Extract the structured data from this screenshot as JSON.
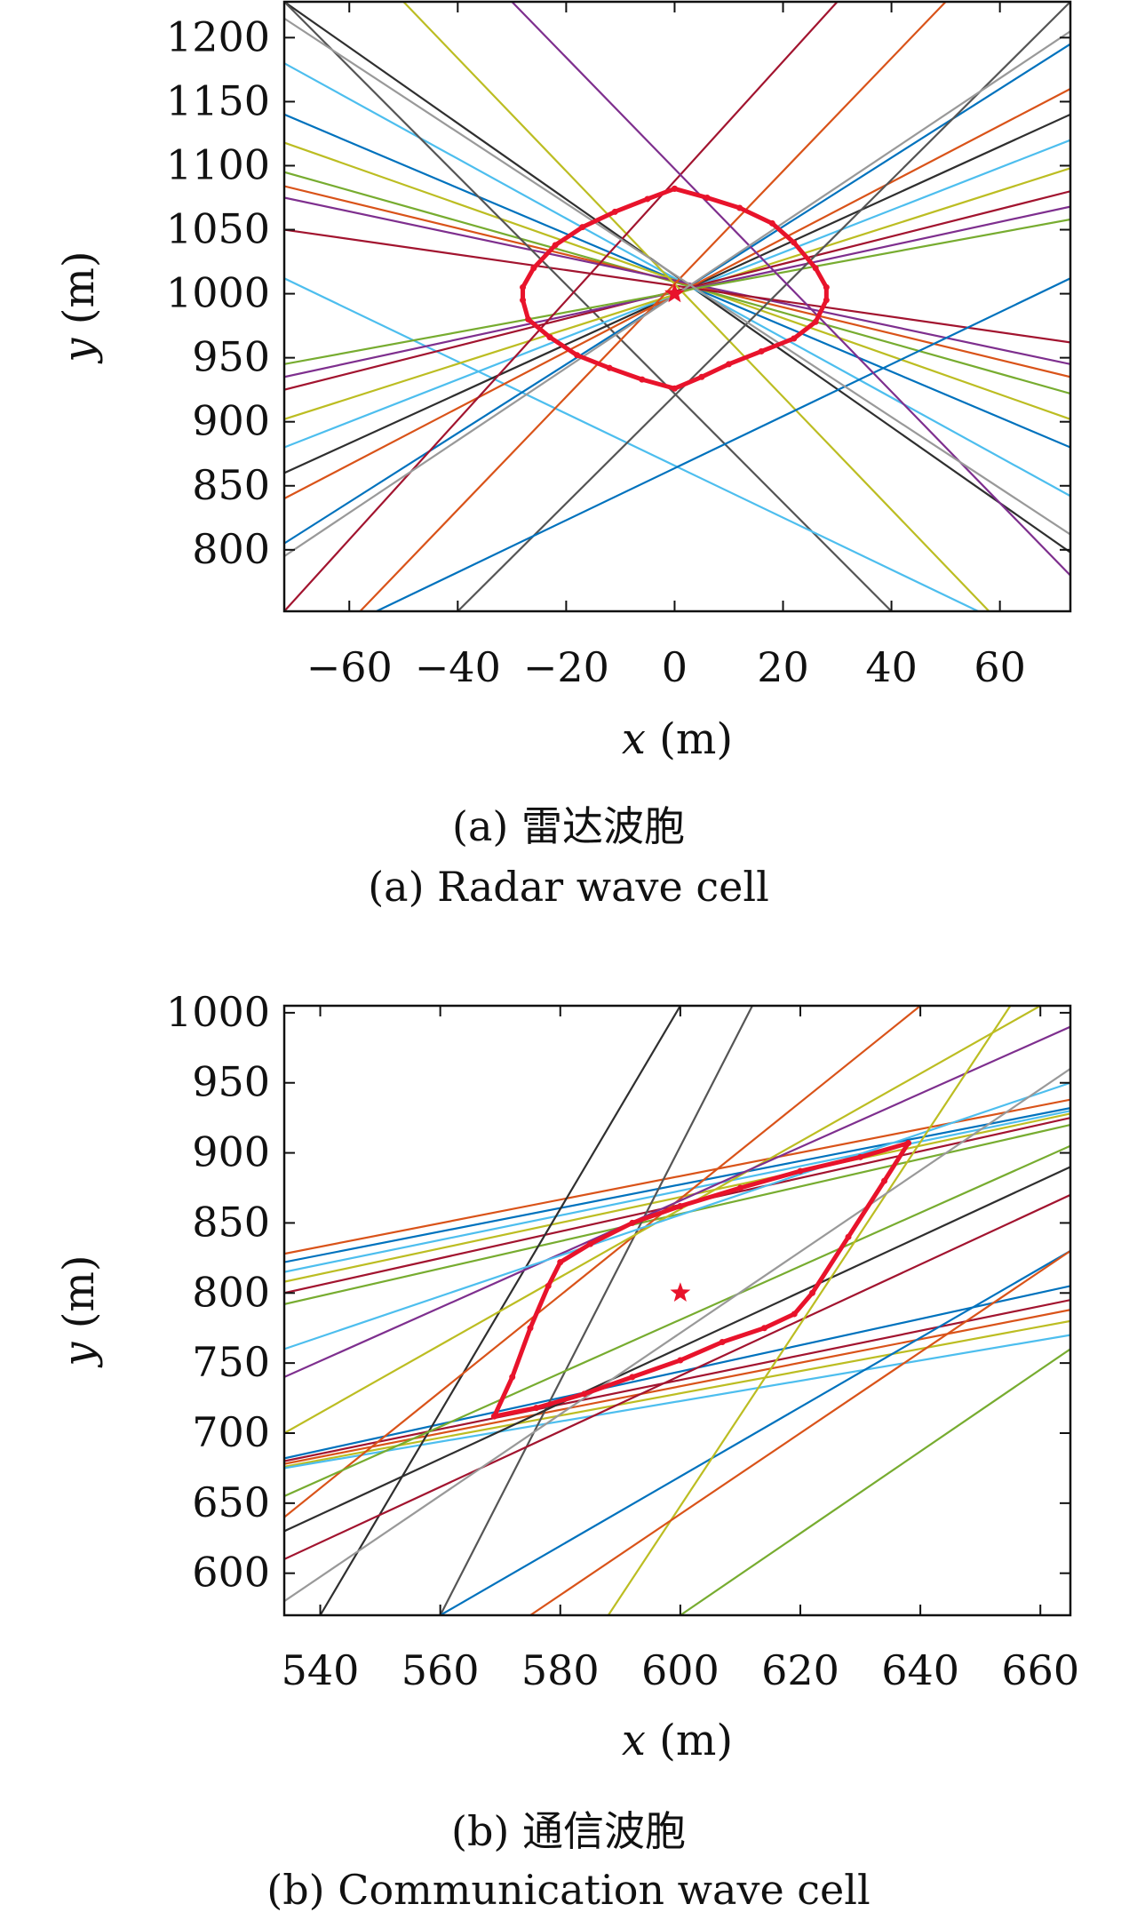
{
  "charts": [
    {
      "id": "a",
      "chart_data": {
        "type": "line",
        "xlabel_var": "x",
        "xlabel_unit": "(m)",
        "ylabel_var": "y",
        "ylabel_unit": "(m)",
        "xlim": [
          -72,
          73
        ],
        "ylim": [
          752,
          1228
        ],
        "xticks": [
          -60,
          -40,
          -20,
          0,
          20,
          40,
          60
        ],
        "xtick_labels": [
          "−60",
          "−40",
          "−20",
          "0",
          "20",
          "40",
          "60"
        ],
        "yticks": [
          800,
          850,
          900,
          950,
          1000,
          1050,
          1100,
          1150,
          1200
        ],
        "ytick_labels": [
          "800",
          "850",
          "900",
          "950",
          "1000",
          "1050",
          "1100",
          "1150",
          "1200"
        ],
        "lines": [
          {
            "p1": [
              -72,
              1228
            ],
            "p2": [
              73,
              798
            ],
            "color": "#2f2f2f"
          },
          {
            "p1": [
              -72,
              1180
            ],
            "p2": [
              73,
              842
            ],
            "color": "#4dbeee"
          },
          {
            "p1": [
              -72,
              1140
            ],
            "p2": [
              73,
              880
            ],
            "color": "#0072bd"
          },
          {
            "p1": [
              -72,
              1118
            ],
            "p2": [
              73,
              902
            ],
            "color": "#bcbd22"
          },
          {
            "p1": [
              -72,
              1095
            ],
            "p2": [
              73,
              922
            ],
            "color": "#77ac30"
          },
          {
            "p1": [
              -72,
              1084
            ],
            "p2": [
              73,
              935
            ],
            "color": "#d95319"
          },
          {
            "p1": [
              -72,
              1075
            ],
            "p2": [
              73,
              945
            ],
            "color": "#7e2f8e"
          },
          {
            "p1": [
              -72,
              1050
            ],
            "p2": [
              73,
              962
            ],
            "color": "#a2142f"
          },
          {
            "p1": [
              -72,
              1228
            ],
            "p2": [
              40,
              752
            ],
            "color": "#555555"
          },
          {
            "p1": [
              -50,
              1228
            ],
            "p2": [
              58,
              752
            ],
            "color": "#bcbd22"
          },
          {
            "p1": [
              -72,
              1012
            ],
            "p2": [
              56,
              752
            ],
            "color": "#4dbeee"
          },
          {
            "p1": [
              -72,
              860
            ],
            "p2": [
              73,
              1140
            ],
            "color": "#2f2f2f"
          },
          {
            "p1": [
              -72,
              805
            ],
            "p2": [
              73,
              1195
            ],
            "color": "#0072bd"
          },
          {
            "p1": [
              -72,
              840
            ],
            "p2": [
              73,
              1160
            ],
            "color": "#d95319"
          },
          {
            "p1": [
              -72,
              880
            ],
            "p2": [
              73,
              1120
            ],
            "color": "#4dbeee"
          },
          {
            "p1": [
              -72,
              902
            ],
            "p2": [
              73,
              1098
            ],
            "color": "#bcbd22"
          },
          {
            "p1": [
              -72,
              925
            ],
            "p2": [
              73,
              1080
            ],
            "color": "#a2142f"
          },
          {
            "p1": [
              -72,
              935
            ],
            "p2": [
              73,
              1068
            ],
            "color": "#7e2f8e"
          },
          {
            "p1": [
              -72,
              945
            ],
            "p2": [
              73,
              1058
            ],
            "color": "#77ac30"
          },
          {
            "p1": [
              -40,
              752
            ],
            "p2": [
              73,
              1228
            ],
            "color": "#555555"
          },
          {
            "p1": [
              -58,
              752
            ],
            "p2": [
              50,
              1228
            ],
            "color": "#d95319"
          },
          {
            "p1": [
              -55,
              752
            ],
            "p2": [
              73,
              1012
            ],
            "color": "#0072bd"
          },
          {
            "p1": [
              -72,
              752
            ],
            "p2": [
              30,
              1228
            ],
            "color": "#a2142f"
          },
          {
            "p1": [
              -30,
              1228
            ],
            "p2": [
              73,
              780
            ],
            "color": "#7e2f8e"
          },
          {
            "p1": [
              -72,
              1215
            ],
            "p2": [
              73,
              812
            ],
            "color": "#999999"
          },
          {
            "p1": [
              -72,
              795
            ],
            "p2": [
              73,
              1205
            ],
            "color": "#999999"
          },
          {
            "p1": [
              -72,
              1000
            ],
            "p2": [
              73,
              1000
            ],
            "color": "#ffffff00"
          }
        ],
        "cell_boundary": [
          [
            0,
            1082
          ],
          [
            6,
            1075
          ],
          [
            12,
            1067
          ],
          [
            18,
            1055
          ],
          [
            22,
            1040
          ],
          [
            26,
            1020
          ],
          [
            28,
            1005
          ],
          [
            28,
            995
          ],
          [
            26,
            978
          ],
          [
            22,
            965
          ],
          [
            16,
            955
          ],
          [
            10,
            945
          ],
          [
            5,
            935
          ],
          [
            0,
            926
          ],
          [
            -6,
            933
          ],
          [
            -12,
            942
          ],
          [
            -18,
            952
          ],
          [
            -23,
            966
          ],
          [
            -27,
            980
          ],
          [
            -28,
            995
          ],
          [
            -28,
            1005
          ],
          [
            -26,
            1020
          ],
          [
            -22,
            1038
          ],
          [
            -17,
            1052
          ],
          [
            -11,
            1064
          ],
          [
            -5,
            1074
          ],
          [
            0,
            1082
          ]
        ],
        "center": [
          0,
          1000
        ]
      },
      "caption_cn": "(a) 雷达波胞",
      "caption_en": "(a) Radar wave cell"
    },
    {
      "id": "b",
      "chart_data": {
        "type": "line",
        "xlabel_var": "x",
        "xlabel_unit": "(m)",
        "ylabel_var": "y",
        "ylabel_unit": "(m)",
        "xlim": [
          534,
          665
        ],
        "ylim": [
          570,
          1005
        ],
        "xticks": [
          540,
          560,
          580,
          600,
          620,
          640,
          660
        ],
        "xtick_labels": [
          "540",
          "560",
          "580",
          "600",
          "620",
          "640",
          "660"
        ],
        "yticks": [
          600,
          650,
          700,
          750,
          800,
          850,
          900,
          950,
          1000
        ],
        "ytick_labels": [
          "600",
          "650",
          "700",
          "750",
          "800",
          "850",
          "900",
          "950",
          "1000"
        ],
        "lines": [
          {
            "p1": [
              534,
              828
            ],
            "p2": [
              665,
              938
            ],
            "color": "#d95319"
          },
          {
            "p1": [
              534,
              822
            ],
            "p2": [
              665,
              932
            ],
            "color": "#0072bd"
          },
          {
            "p1": [
              534,
              815
            ],
            "p2": [
              665,
              930
            ],
            "color": "#4dbeee"
          },
          {
            "p1": [
              534,
              808
            ],
            "p2": [
              665,
              928
            ],
            "color": "#bcbd22"
          },
          {
            "p1": [
              534,
              800
            ],
            "p2": [
              665,
              925
            ],
            "color": "#a2142f"
          },
          {
            "p1": [
              534,
              792
            ],
            "p2": [
              665,
              920
            ],
            "color": "#77ac30"
          },
          {
            "p1": [
              534,
              682
            ],
            "p2": [
              665,
              805
            ],
            "color": "#0072bd"
          },
          {
            "p1": [
              534,
              680
            ],
            "p2": [
              665,
              795
            ],
            "color": "#a2142f"
          },
          {
            "p1": [
              534,
              678
            ],
            "p2": [
              665,
              788
            ],
            "color": "#d95319"
          },
          {
            "p1": [
              534,
              676
            ],
            "p2": [
              665,
              780
            ],
            "color": "#bcbd22"
          },
          {
            "p1": [
              534,
              675
            ],
            "p2": [
              665,
              770
            ],
            "color": "#4dbeee"
          },
          {
            "p1": [
              540,
              570
            ],
            "p2": [
              600,
              1005
            ],
            "color": "#2f2f2f"
          },
          {
            "p1": [
              560,
              570
            ],
            "p2": [
              612,
              1005
            ],
            "color": "#555555"
          },
          {
            "p1": [
              534,
              640
            ],
            "p2": [
              640,
              1005
            ],
            "color": "#d95319"
          },
          {
            "p1": [
              534,
              700
            ],
            "p2": [
              660,
              1005
            ],
            "color": "#bcbd22"
          },
          {
            "p1": [
              534,
              740
            ],
            "p2": [
              665,
              990
            ],
            "color": "#7e2f8e"
          },
          {
            "p1": [
              534,
              760
            ],
            "p2": [
              665,
              950
            ],
            "color": "#4dbeee"
          },
          {
            "p1": [
              534,
              610
            ],
            "p2": [
              665,
              870
            ],
            "color": "#a2142f"
          },
          {
            "p1": [
              534,
              630
            ],
            "p2": [
              665,
              890
            ],
            "color": "#2f2f2f"
          },
          {
            "p1": [
              534,
              655
            ],
            "p2": [
              665,
              905
            ],
            "color": "#77ac30"
          },
          {
            "p1": [
              560,
              570
            ],
            "p2": [
              665,
              830
            ],
            "color": "#0072bd"
          },
          {
            "p1": [
              588,
              570
            ],
            "p2": [
              655,
              1005
            ],
            "color": "#bcbd22"
          },
          {
            "p1": [
              575,
              570
            ],
            "p2": [
              665,
              830
            ],
            "color": "#d95319"
          },
          {
            "p1": [
              600,
              570
            ],
            "p2": [
              665,
              760
            ],
            "color": "#77ac30"
          },
          {
            "p1": [
              534,
              580
            ],
            "p2": [
              665,
              960
            ],
            "color": "#999999"
          }
        ],
        "cell_boundary": [
          [
            569,
            712
          ],
          [
            572,
            740
          ],
          [
            575,
            775
          ],
          [
            578,
            805
          ],
          [
            580,
            822
          ],
          [
            585,
            835
          ],
          [
            592,
            850
          ],
          [
            600,
            862
          ],
          [
            610,
            875
          ],
          [
            620,
            887
          ],
          [
            630,
            897
          ],
          [
            638,
            907
          ],
          [
            634,
            880
          ],
          [
            628,
            840
          ],
          [
            622,
            800
          ],
          [
            619,
            785
          ],
          [
            614,
            775
          ],
          [
            607,
            765
          ],
          [
            600,
            752
          ],
          [
            592,
            740
          ],
          [
            584,
            728
          ],
          [
            576,
            718
          ],
          [
            569,
            712
          ]
        ],
        "center": [
          600,
          800
        ]
      },
      "caption_cn": "(b) 通信波胞",
      "caption_en": "(b) Communication wave cell"
    }
  ]
}
